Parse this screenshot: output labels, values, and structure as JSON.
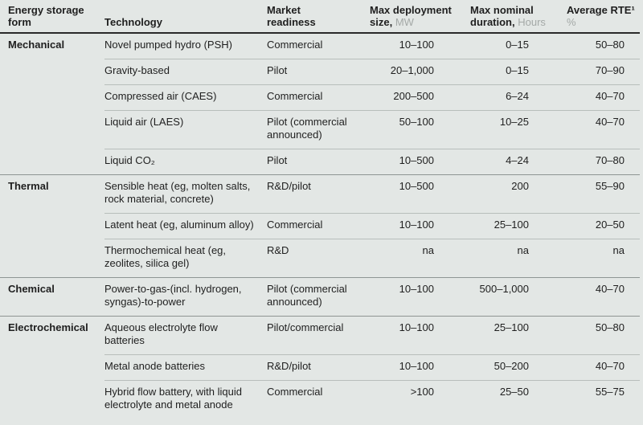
{
  "colors": {
    "background": "#e3e7e5",
    "text": "#1f1f1f",
    "unit_gray": "#a4a9a7",
    "header_rule": "#2a2a2a",
    "group_rule": "#8e9593",
    "row_rule": "#b8bebb"
  },
  "table": {
    "headers": {
      "form": "Energy storage form",
      "technology": "Technology",
      "readiness": "Market readiness",
      "size": {
        "label": "Max deployment size,",
        "unit": "MW"
      },
      "duration": {
        "label": "Max nominal duration,",
        "unit": "Hours"
      },
      "rte": {
        "label": "Average RTE¹",
        "unit": "%"
      }
    },
    "groups": [
      {
        "form": "Mechanical",
        "rows": [
          {
            "tech": "Novel pumped hydro (PSH)",
            "readiness": "Commercial",
            "size": "10–100",
            "duration": "0–15",
            "rte": "50–80"
          },
          {
            "tech": "Gravity-based",
            "readiness": "Pilot",
            "size": "20–1,000",
            "duration": "0–15",
            "rte": "70–90"
          },
          {
            "tech": "Compressed air (CAES)",
            "readiness": "Commercial",
            "size": "200–500",
            "duration": "6–24",
            "rte": "40–70"
          },
          {
            "tech": "Liquid air (LAES)",
            "readiness": "Pilot (commercial announced)",
            "size": "50–100",
            "duration": "10–25",
            "rte": "40–70"
          },
          {
            "tech": "Liquid CO₂",
            "readiness": "Pilot",
            "size": "10–500",
            "duration": "4–24",
            "rte": "70–80"
          }
        ]
      },
      {
        "form": "Thermal",
        "rows": [
          {
            "tech": "Sensible heat (eg, molten salts, rock material, concrete)",
            "readiness": "R&D/pilot",
            "size": "10–500",
            "duration": "200",
            "rte": "55–90"
          },
          {
            "tech": "Latent heat (eg, aluminum alloy)",
            "readiness": "Commercial",
            "size": "10–100",
            "duration": "25–100",
            "rte": "20–50"
          },
          {
            "tech": "Thermochemical heat (eg, zeolites, silica gel)",
            "readiness": "R&D",
            "size": "na",
            "duration": "na",
            "rte": "na"
          }
        ]
      },
      {
        "form": "Chemical",
        "rows": [
          {
            "tech": "Power-to-gas-(incl. hydrogen, syngas)-to-power",
            "readiness": "Pilot (commercial announced)",
            "size": "10–100",
            "duration": "500–1,000",
            "rte": "40–70"
          }
        ]
      },
      {
        "form": "Electrochemical",
        "rows": [
          {
            "tech": "Aqueous electrolyte flow batteries",
            "readiness": "Pilot/commercial",
            "size": "10–100",
            "duration": "25–100",
            "rte": "50–80"
          },
          {
            "tech": "Metal anode batteries",
            "readiness": "R&D/pilot",
            "size": "10–100",
            "duration": "50–200",
            "rte": "40–70"
          },
          {
            "tech": "Hybrid flow battery, with liquid electrolyte and metal anode",
            "readiness": "Commercial",
            "size": ">100",
            "duration": "25–50",
            "rte": "55–75"
          }
        ]
      }
    ]
  }
}
